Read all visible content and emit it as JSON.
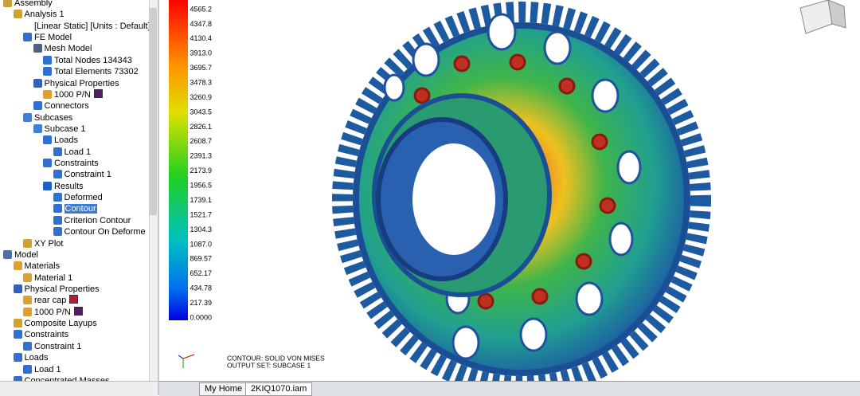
{
  "tree": {
    "items": [
      {
        "label": "Assembly"
      },
      {
        "label": "Analysis 1"
      },
      {
        "label": "[Linear Static] [Units : Default]"
      },
      {
        "label": "FE Model"
      },
      {
        "label": "Mesh Model"
      },
      {
        "label": "Total Nodes 134343"
      },
      {
        "label": "Total Elements 73302"
      },
      {
        "label": "Physical Properties"
      },
      {
        "label": "1000 P/N"
      },
      {
        "label": "Connectors"
      },
      {
        "label": "Subcases"
      },
      {
        "label": "Subcase 1"
      },
      {
        "label": "Loads"
      },
      {
        "label": "Load 1"
      },
      {
        "label": "Constraints"
      },
      {
        "label": "Constraint 1"
      },
      {
        "label": "Results"
      },
      {
        "label": "Deformed"
      },
      {
        "label": "Contour"
      },
      {
        "label": "Criterion Contour"
      },
      {
        "label": "Contour On Deforme"
      },
      {
        "label": "XY Plot"
      },
      {
        "label": "Model"
      },
      {
        "label": "Materials"
      },
      {
        "label": "Material 1"
      },
      {
        "label": "Physical Properties"
      },
      {
        "label": "rear cap"
      },
      {
        "label": "1000 P/N"
      },
      {
        "label": "Composite Layups"
      },
      {
        "label": "Constraints"
      },
      {
        "label": "Constraint 1"
      },
      {
        "label": "Loads"
      },
      {
        "label": "Load 1"
      },
      {
        "label": "Concentrated Masses"
      }
    ]
  },
  "legend": {
    "labels": [
      "4565.2",
      "4347.8",
      "4130.4",
      "3913.0",
      "3695.7",
      "3478.3",
      "3260.9",
      "3043.5",
      "2826.1",
      "2608.7",
      "2391.3",
      "2173.9",
      "1956.5",
      "1739.1",
      "1521.7",
      "1304.3",
      "1087.0",
      "869.57",
      "652.17",
      "434.78",
      "217.39",
      "0.0000"
    ]
  },
  "viewport": {
    "annotation": [
      "CONTOUR: SOLID VON MISES",
      "OUTPUT SET: SUBCASE 1"
    ]
  },
  "tabs": [
    "My Home",
    "2KIQ1070.iam"
  ]
}
